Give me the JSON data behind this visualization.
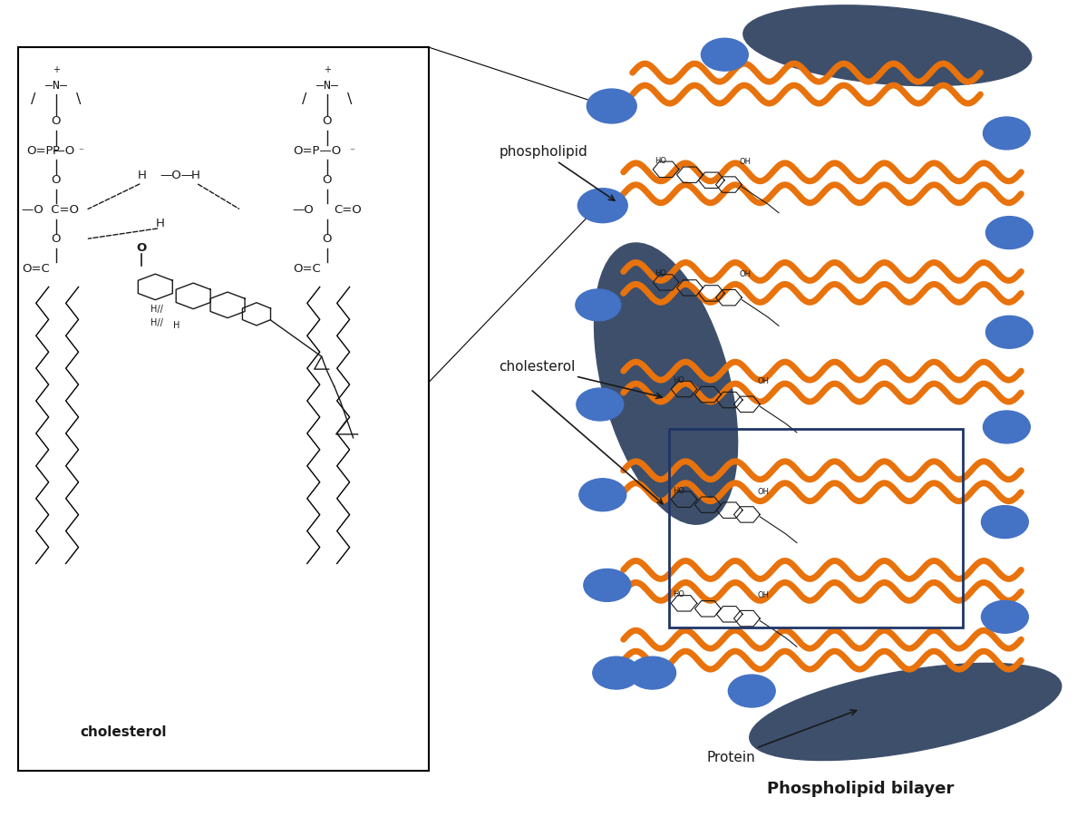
{
  "bg_color": "#ffffff",
  "box_color": "#1a1a1a",
  "orange_color": "#E8720C",
  "blue_ellipse_color": "#4472C4",
  "dark_shape_color": "#3D4F6B",
  "text_color": "#1a1a1a",
  "title_text": "Phospholipid bilayer",
  "protein_label": "Protein",
  "phospholipid_label": "phospholipid",
  "cholesterol_label": "cholesterol",
  "cholesterol_box_label": "cholesterol",
  "fig_width": 11.88,
  "fig_height": 9.01
}
